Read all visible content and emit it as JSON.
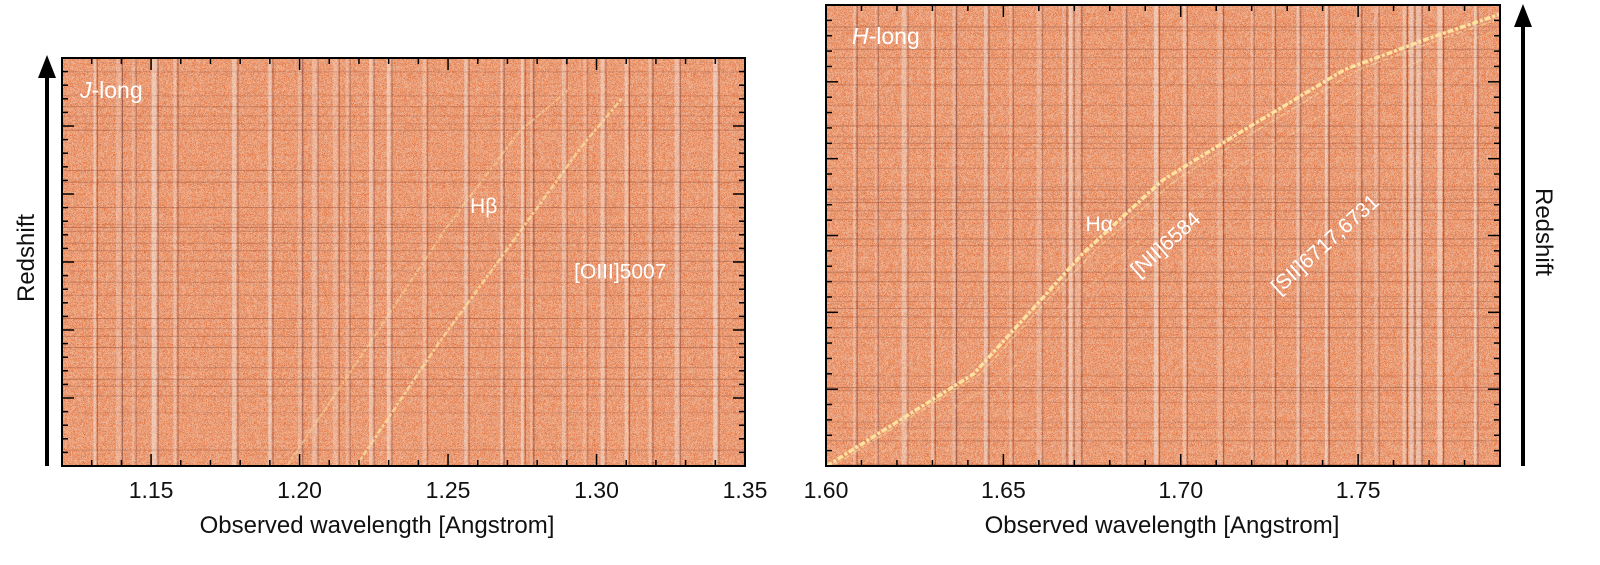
{
  "chart_data": [
    {
      "type": "heatmap",
      "panel_label": {
        "italic": "J",
        "rest": "-long"
      },
      "xlabel": "Observed wavelength [Angstrom]",
      "ylabel": "Redshift",
      "xlim": [
        1.12,
        1.35
      ],
      "x_ticks": [
        1.15,
        1.2,
        1.25,
        1.3,
        1.35
      ],
      "x_tick_labels": [
        "1.15",
        "1.20",
        "1.25",
        "1.30",
        "1.35"
      ],
      "line_annotations": [
        {
          "label": "Hβ",
          "x": 1.262,
          "y": 0.62
        },
        {
          "label": "[OIII]5007",
          "x": 1.308,
          "y": 0.46
        }
      ],
      "colors": {
        "background": "#e4703a",
        "line": "#ffe6a0",
        "sky": "#f2f2f2"
      }
    },
    {
      "type": "heatmap",
      "panel_label": {
        "italic": "H",
        "rest": "-long"
      },
      "xlabel": "Observed wavelength [Angstrom]",
      "ylabel": "Redshift",
      "xlim": [
        1.6,
        1.79
      ],
      "x_ticks": [
        1.6,
        1.65,
        1.7,
        1.75
      ],
      "x_tick_labels": [
        "1.60",
        "1.65",
        "1.70",
        "1.75"
      ],
      "line_annotations": [
        {
          "label": "Hα",
          "x": 1.677,
          "y": 0.51
        },
        {
          "label": "[NII]6584",
          "x": 1.697,
          "y": 0.47
        },
        {
          "label": "[SII]6717,6731",
          "x": 1.742,
          "y": 0.47
        }
      ],
      "colors": {
        "background": "#e4703a",
        "line": "#ffe6a0",
        "sky": "#f2f2f2"
      }
    }
  ]
}
